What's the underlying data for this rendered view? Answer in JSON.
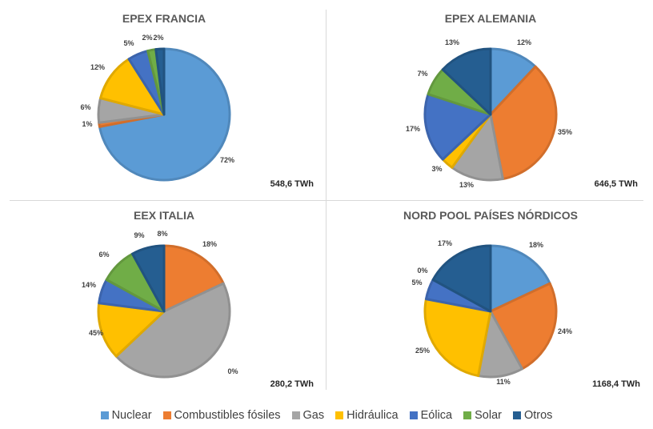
{
  "colors": {
    "Nuclear": "#5b9bd5",
    "Combustibles fósiles": "#ed7d31",
    "Gas": "#a5a5a5",
    "Hidráulica": "#ffc000",
    "Eólica": "#4472c4",
    "Solar": "#70ad47",
    "Otros": "#255e91"
  },
  "legend": [
    {
      "label": "Nuclear",
      "color": "#5b9bd5"
    },
    {
      "label": "Combustibles fósiles",
      "color": "#ed7d31"
    },
    {
      "label": "Gas",
      "color": "#a5a5a5"
    },
    {
      "label": "Hidráulica",
      "color": "#ffc000"
    },
    {
      "label": "Eólica",
      "color": "#4472c4"
    },
    {
      "label": "Solar",
      "color": "#70ad47"
    },
    {
      "label": "Otros",
      "color": "#255e91"
    }
  ],
  "chart_data": [
    {
      "type": "pie",
      "title": "EPEX FRANCIA",
      "total": "548,6 TWh",
      "labels": [
        "Nuclear",
        "Combustibles fósiles",
        "Gas",
        "Hidráulica",
        "Eólica",
        "Solar",
        "Otros"
      ],
      "values": [
        72,
        1,
        6,
        12,
        5,
        2,
        2
      ],
      "value_labels": [
        "72%",
        "1%",
        "6%",
        "12%",
        "5%",
        "2%",
        "2%"
      ]
    },
    {
      "type": "pie",
      "title": "EPEX ALEMANIA",
      "total": "646,5 TWh",
      "labels": [
        "Nuclear",
        "Combustibles fósiles",
        "Gas",
        "Hidráulica",
        "Eólica",
        "Solar",
        "Otros"
      ],
      "values": [
        12,
        35,
        13,
        3,
        17,
        7,
        13
      ],
      "value_labels": [
        "12%",
        "35%",
        "13%",
        "3%",
        "17%",
        "7%",
        "13%"
      ]
    },
    {
      "type": "pie",
      "title": "EEX ITALIA",
      "total": "280,2 TWh",
      "labels": [
        "Nuclear",
        "Combustibles fósiles",
        "Gas",
        "Hidráulica",
        "Eólica",
        "Solar",
        "Otros"
      ],
      "values": [
        0,
        18,
        45,
        14,
        6,
        9,
        8
      ],
      "value_labels": [
        "0%",
        "18%",
        "45%",
        "14%",
        "6%",
        "9%",
        "8%"
      ]
    },
    {
      "type": "pie",
      "title": "NORD POOL PAÍSES NÓRDICOS",
      "total": "1168,4 TWh",
      "labels": [
        "Nuclear",
        "Combustibles fósiles",
        "Gas",
        "Hidráulica",
        "Eólica",
        "Solar",
        "Otros"
      ],
      "values": [
        18,
        24,
        11,
        25,
        5,
        0,
        17
      ],
      "value_labels": [
        "18%",
        "24%",
        "11%",
        "25%",
        "5%",
        "0%",
        "17%"
      ]
    }
  ]
}
